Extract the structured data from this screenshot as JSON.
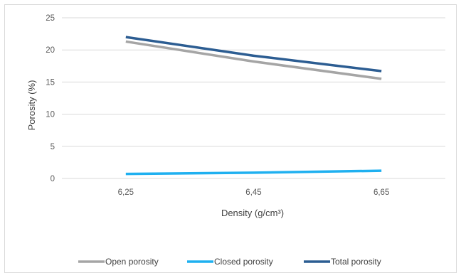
{
  "chart_data": {
    "type": "line",
    "title": "",
    "xlabel": "Density (g/cm³)",
    "ylabel": "Porosity (%)",
    "categories": [
      "6,25",
      "6,45",
      "6,65"
    ],
    "yticks": [
      "0",
      "5",
      "10",
      "15",
      "20",
      "25"
    ],
    "ylim": [
      0,
      25
    ],
    "grid": true,
    "legend_position": "bottom",
    "series": [
      {
        "name": "Open porosity",
        "color": "#a5a5a5",
        "values": [
          21.3,
          18.2,
          15.5
        ]
      },
      {
        "name": "Closed porosity",
        "color": "#1fb0f0",
        "values": [
          0.7,
          0.9,
          1.2
        ]
      },
      {
        "name": "Total porosity",
        "color": "#2c5d92",
        "values": [
          22.0,
          19.1,
          16.7
        ]
      }
    ]
  }
}
